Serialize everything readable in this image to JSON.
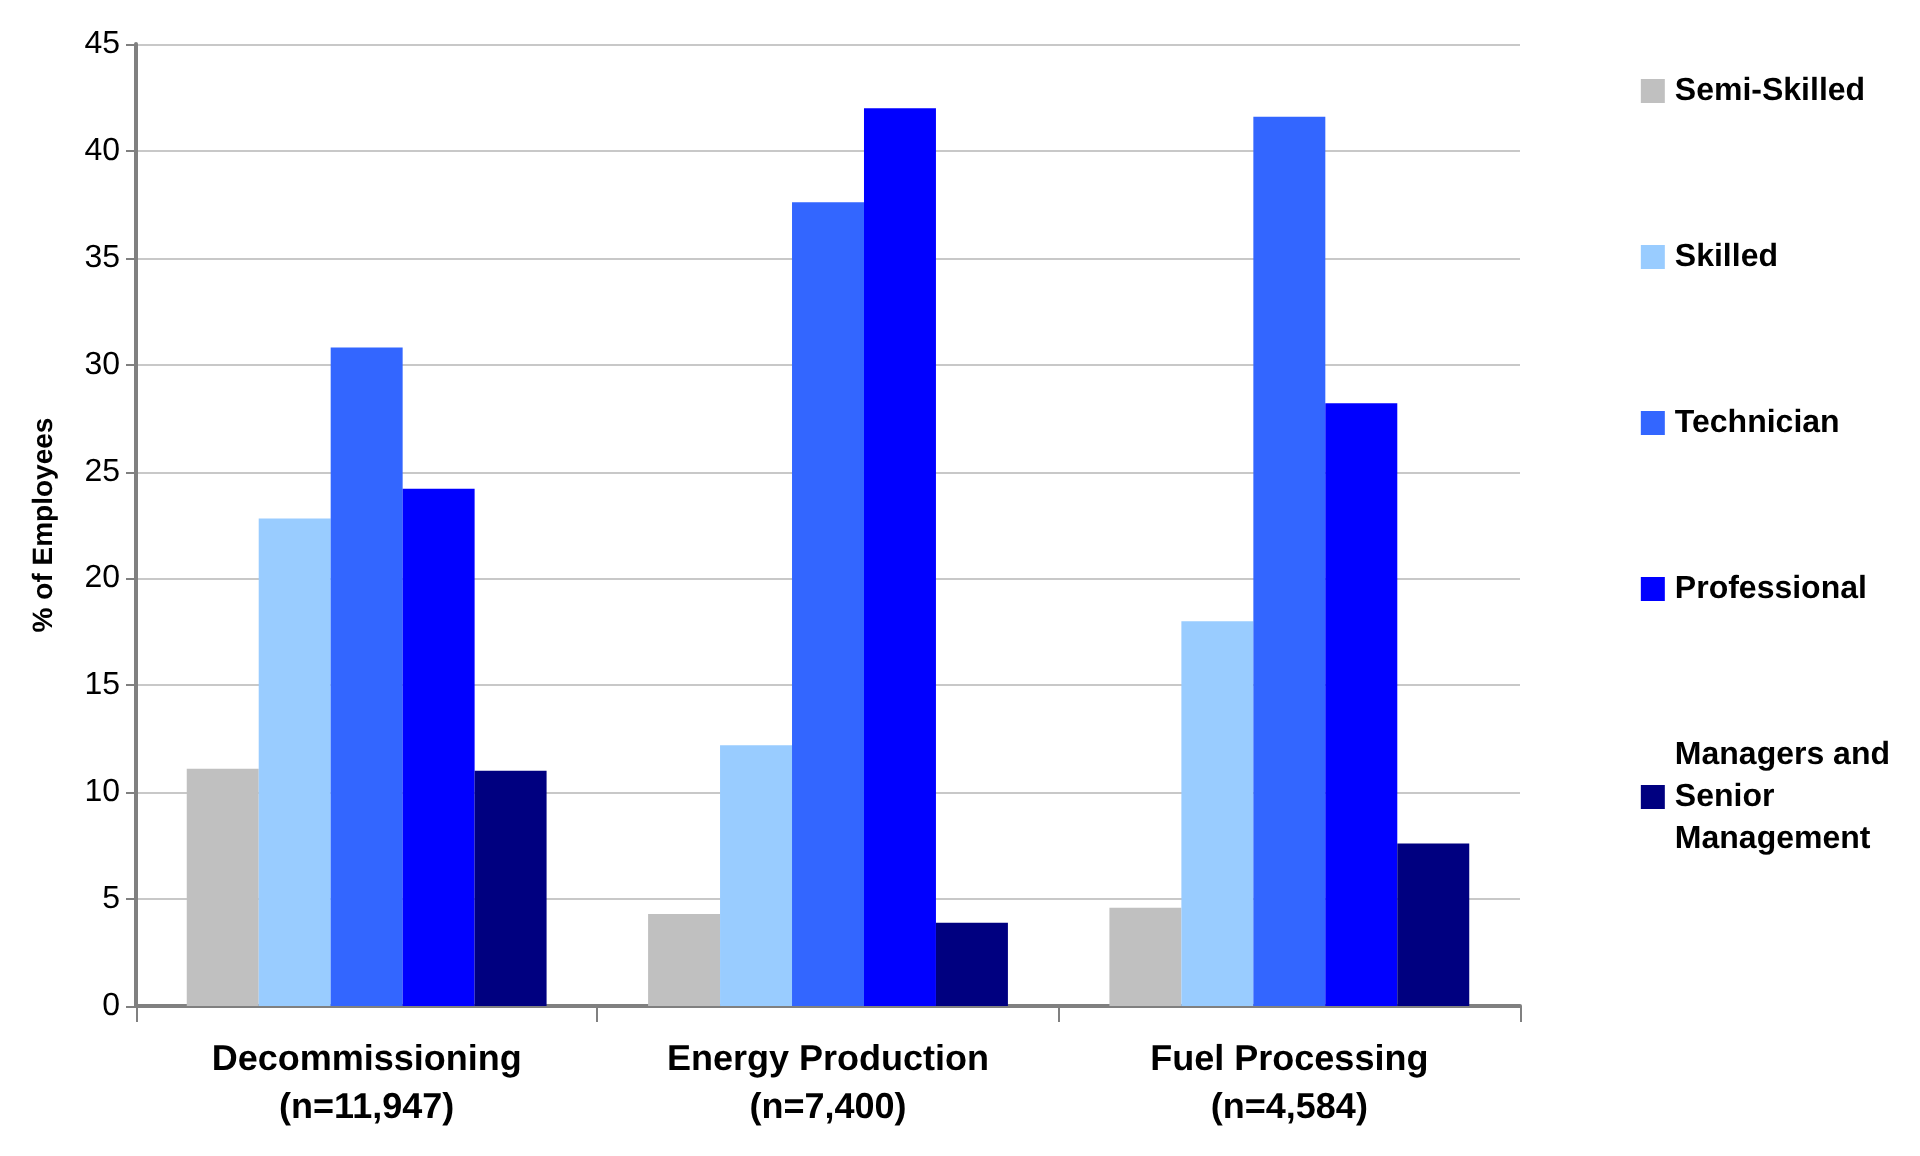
{
  "chart_data": {
    "type": "bar",
    "ylabel": "% of Employees",
    "categories": [
      "Decommissioning\n(n=11,947)",
      "Energy Production\n(n=7,400)",
      "Fuel Processing\n(n=4,584)"
    ],
    "series": [
      {
        "name": "Semi-Skilled",
        "color": "#c0c0c0",
        "values": [
          11.1,
          4.3,
          4.6
        ]
      },
      {
        "name": "Skilled",
        "color": "#99ccff",
        "values": [
          22.8,
          12.2,
          18.0
        ]
      },
      {
        "name": "Technician",
        "color": "#3366ff",
        "values": [
          30.8,
          37.6,
          41.6
        ]
      },
      {
        "name": "Professional",
        "color": "#0000ff",
        "values": [
          24.2,
          42.0,
          28.2
        ]
      },
      {
        "name": "Managers and\nSenior\nManagement",
        "color": "#000080",
        "values": [
          11.0,
          3.9,
          7.6
        ]
      }
    ],
    "ylim": [
      0,
      45
    ],
    "yticks": [
      0,
      5,
      10,
      15,
      20,
      25,
      30,
      35,
      40,
      45
    ],
    "grid": "y",
    "legend": "right"
  }
}
